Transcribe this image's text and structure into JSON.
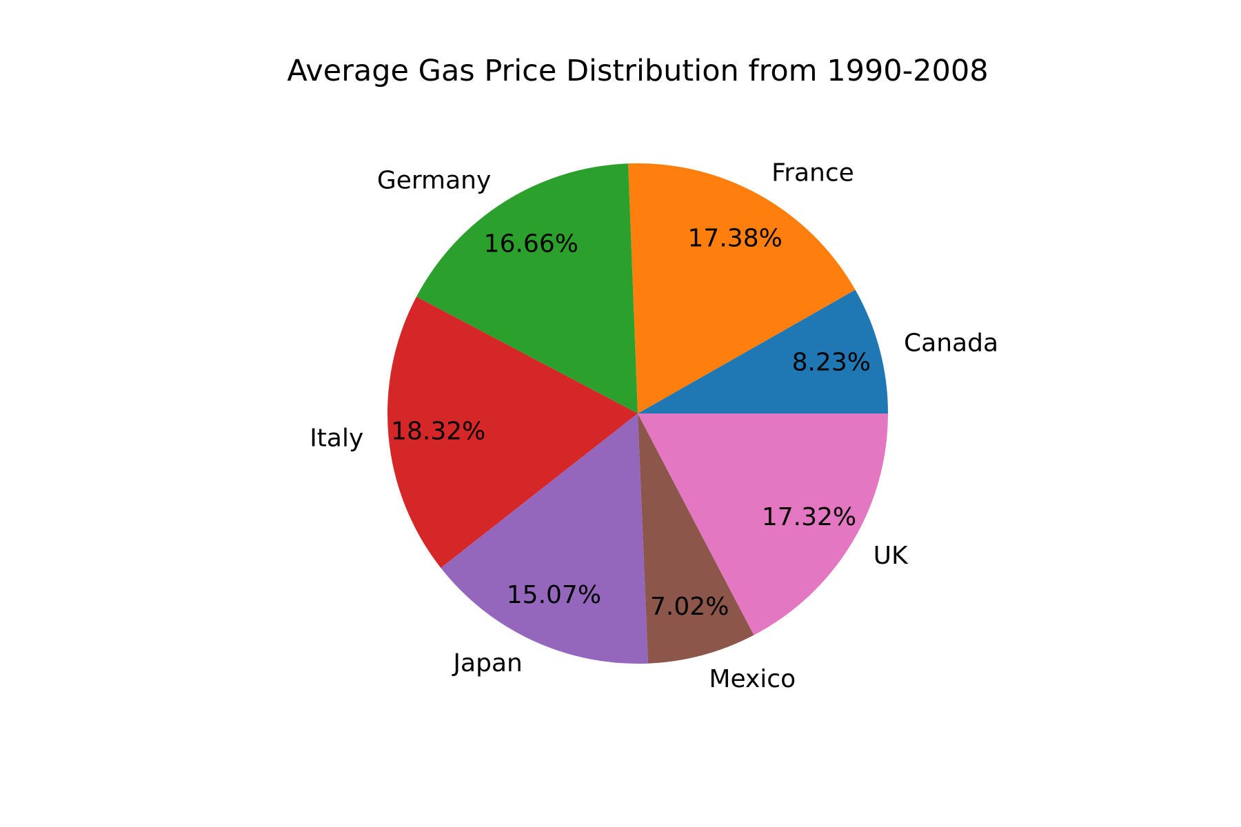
{
  "chart_data": {
    "type": "pie",
    "title": "Average Gas Price Distribution from 1990-2008",
    "categories": [
      "Canada",
      "France",
      "Germany",
      "Italy",
      "Japan",
      "Mexico",
      "UK"
    ],
    "values": [
      8.23,
      17.38,
      16.66,
      18.32,
      15.07,
      7.02,
      17.32
    ],
    "value_labels": [
      "8.23%",
      "17.38%",
      "16.66%",
      "18.32%",
      "15.07%",
      "7.02%",
      "17.32%"
    ],
    "colors": [
      "#1f77b4",
      "#ff7f0e",
      "#2ca02c",
      "#d62728",
      "#9467bd",
      "#8c564b",
      "#e377c2"
    ],
    "start_angle": 0,
    "direction": "counterclockwise"
  }
}
